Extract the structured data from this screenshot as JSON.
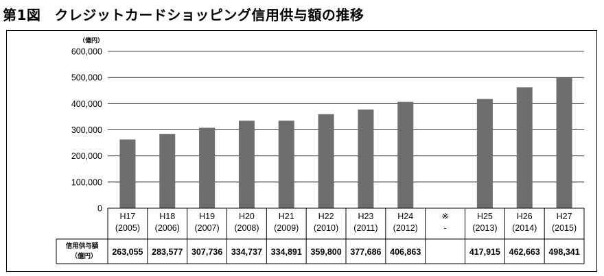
{
  "title": {
    "number": "第1図",
    "text": "クレジットカードショッピング信用供与額の推移"
  },
  "chart_data": {
    "type": "bar",
    "title": "クレジットカードショッピング信用供与額の推移",
    "unit_label": "（億円）",
    "ylim": [
      0,
      600000
    ],
    "yticks": [
      "0",
      "100,000",
      "200,000",
      "300,000",
      "400,000",
      "500,000",
      "600,000"
    ],
    "ytick_values": [
      0,
      100000,
      200000,
      300000,
      400000,
      500000,
      600000
    ],
    "grid": true,
    "color": "#6e6e6e",
    "categories": [
      {
        "line1": "H17",
        "line2": "(2005)"
      },
      {
        "line1": "H18",
        "line2": "(2006)"
      },
      {
        "line1": "H19",
        "line2": "(2007)"
      },
      {
        "line1": "H20",
        "line2": "(2008)"
      },
      {
        "line1": "H21",
        "line2": "(2009)"
      },
      {
        "line1": "H22",
        "line2": "(2010)"
      },
      {
        "line1": "H23",
        "line2": "(2011)"
      },
      {
        "line1": "H24",
        "line2": "(2012)"
      },
      {
        "line1": "※",
        "line2": "-"
      },
      {
        "line1": "H25",
        "line2": "(2013)"
      },
      {
        "line1": "H26",
        "line2": "(2014)"
      },
      {
        "line1": "H27",
        "line2": "(2015)"
      }
    ],
    "values": [
      263055,
      283577,
      307736,
      334737,
      334891,
      359800,
      377686,
      406863,
      null,
      417915,
      462663,
      498341
    ],
    "value_labels": [
      "263,055",
      "283,577",
      "307,736",
      "334,737",
      "334,891",
      "359,800",
      "377,686",
      "406,863",
      "",
      "417,915",
      "462,663",
      "498,341"
    ],
    "table_row_header": [
      "信用供与額",
      "（億円）"
    ]
  }
}
